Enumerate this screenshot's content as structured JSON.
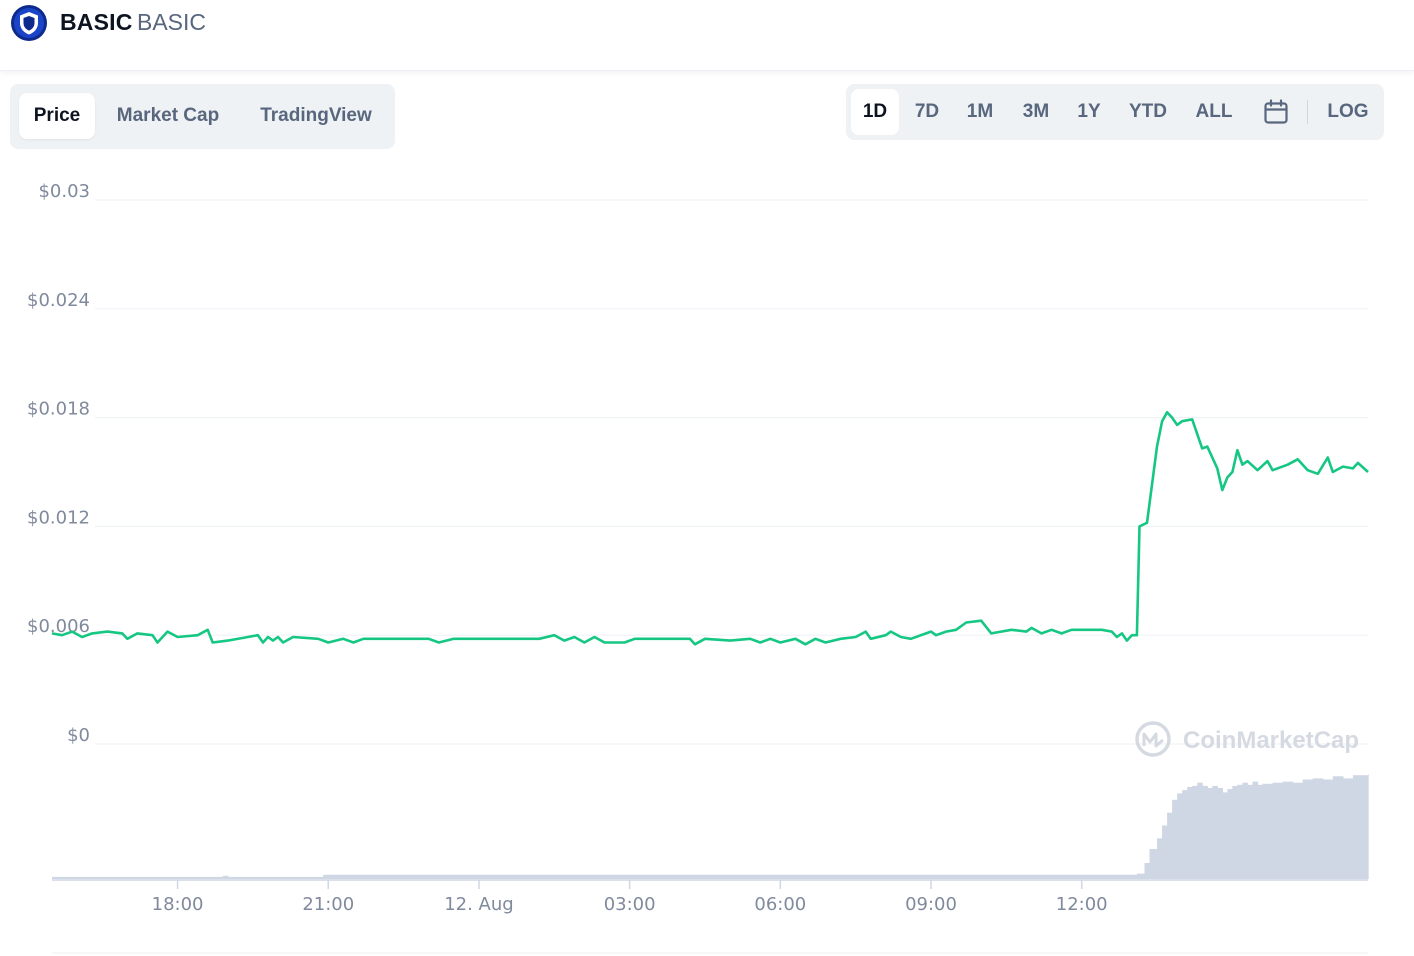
{
  "header": {
    "name": "BASIC",
    "symbol": "BASIC"
  },
  "tabs": [
    {
      "label": "Price",
      "active": true
    },
    {
      "label": "Market Cap",
      "active": false
    },
    {
      "label": "TradingView",
      "active": false
    }
  ],
  "ranges": [
    {
      "label": "1D",
      "active": true
    },
    {
      "label": "7D",
      "active": false
    },
    {
      "label": "1M",
      "active": false
    },
    {
      "label": "3M",
      "active": false
    },
    {
      "label": "1Y",
      "active": false
    },
    {
      "label": "YTD",
      "active": false
    },
    {
      "label": "ALL",
      "active": false
    }
  ],
  "log_label": "LOG",
  "watermark": "CoinMarketCap",
  "colors": {
    "line": "#16c784",
    "volume": "#cfd6e4",
    "grid": "#eff2f5",
    "axis_text": "#808a9d",
    "brand": "#0d2a8c"
  },
  "chart_data": {
    "type": "line",
    "title": "",
    "xlabel": "",
    "ylabel": "",
    "ylim": [
      0,
      0.03
    ],
    "yticks": [
      {
        "value": 0.03,
        "label": "$0.03"
      },
      {
        "value": 0.024,
        "label": "$0.024"
      },
      {
        "value": 0.018,
        "label": "$0.018"
      },
      {
        "value": 0.012,
        "label": "$0.012"
      },
      {
        "value": 0.006,
        "label": "$0.006"
      },
      {
        "value": 0,
        "label": "$0"
      }
    ],
    "xlim": [
      15.5,
      14.4
    ],
    "xticks": [
      {
        "hour": 18,
        "label": "18:00"
      },
      {
        "hour": 21,
        "label": "21:00"
      },
      {
        "hour": 24,
        "label": "12. Aug"
      },
      {
        "hour": 27,
        "label": "03:00"
      },
      {
        "hour": 30,
        "label": "06:00"
      },
      {
        "hour": 33,
        "label": "09:00"
      },
      {
        "hour": 36,
        "label": "12:00"
      }
    ],
    "series": [
      {
        "values": [
          [
            15.5,
            0.0061
          ],
          [
            15.7,
            0.006
          ],
          [
            15.9,
            0.0062
          ],
          [
            16.1,
            0.0059
          ],
          [
            16.3,
            0.0061
          ],
          [
            16.6,
            0.0062
          ],
          [
            16.9,
            0.0061
          ],
          [
            17.0,
            0.0058
          ],
          [
            17.2,
            0.0061
          ],
          [
            17.5,
            0.006
          ],
          [
            17.6,
            0.0056
          ],
          [
            17.8,
            0.0062
          ],
          [
            18.0,
            0.0059
          ],
          [
            18.4,
            0.006
          ],
          [
            18.6,
            0.0063
          ],
          [
            18.7,
            0.0056
          ],
          [
            19.0,
            0.0057
          ],
          [
            19.4,
            0.0059
          ],
          [
            19.6,
            0.006
          ],
          [
            19.7,
            0.0056
          ],
          [
            19.8,
            0.0059
          ],
          [
            19.9,
            0.0057
          ],
          [
            20.0,
            0.0059
          ],
          [
            20.1,
            0.0056
          ],
          [
            20.3,
            0.0059
          ],
          [
            20.8,
            0.0058
          ],
          [
            21.0,
            0.0056
          ],
          [
            21.3,
            0.0058
          ],
          [
            21.5,
            0.0056
          ],
          [
            21.7,
            0.0058
          ],
          [
            22.5,
            0.0058
          ],
          [
            23.0,
            0.0058
          ],
          [
            23.2,
            0.0056
          ],
          [
            23.5,
            0.0058
          ],
          [
            24.0,
            0.0058
          ],
          [
            25.0,
            0.0058
          ],
          [
            25.2,
            0.0058
          ],
          [
            25.5,
            0.006
          ],
          [
            25.7,
            0.0057
          ],
          [
            25.9,
            0.0059
          ],
          [
            26.1,
            0.0056
          ],
          [
            26.3,
            0.0059
          ],
          [
            26.5,
            0.0056
          ],
          [
            26.9,
            0.0056
          ],
          [
            27.1,
            0.0058
          ],
          [
            28.0,
            0.0058
          ],
          [
            28.2,
            0.0058
          ],
          [
            28.3,
            0.0055
          ],
          [
            28.5,
            0.0058
          ],
          [
            29.0,
            0.0057
          ],
          [
            29.4,
            0.0058
          ],
          [
            29.6,
            0.0056
          ],
          [
            29.8,
            0.0058
          ],
          [
            30.0,
            0.0056
          ],
          [
            30.3,
            0.0058
          ],
          [
            30.5,
            0.0055
          ],
          [
            30.7,
            0.0058
          ],
          [
            30.9,
            0.0056
          ],
          [
            31.2,
            0.0058
          ],
          [
            31.5,
            0.0059
          ],
          [
            31.7,
            0.0062
          ],
          [
            31.8,
            0.0058
          ],
          [
            32.1,
            0.006
          ],
          [
            32.2,
            0.0062
          ],
          [
            32.4,
            0.0059
          ],
          [
            32.6,
            0.0058
          ],
          [
            32.9,
            0.0061
          ],
          [
            33.0,
            0.0062
          ],
          [
            33.1,
            0.006
          ],
          [
            33.3,
            0.0062
          ],
          [
            33.5,
            0.0063
          ],
          [
            33.7,
            0.0067
          ],
          [
            34.0,
            0.0068
          ],
          [
            34.2,
            0.0061
          ],
          [
            34.6,
            0.0063
          ],
          [
            34.9,
            0.0062
          ],
          [
            35.0,
            0.0064
          ],
          [
            35.2,
            0.0061
          ],
          [
            35.4,
            0.0063
          ],
          [
            35.6,
            0.0061
          ],
          [
            35.8,
            0.0063
          ],
          [
            36.0,
            0.0063
          ],
          [
            36.4,
            0.0063
          ],
          [
            36.6,
            0.0062
          ],
          [
            36.7,
            0.0059
          ],
          [
            36.8,
            0.0061
          ],
          [
            36.9,
            0.0057
          ],
          [
            37.0,
            0.006
          ],
          [
            37.1,
            0.006
          ],
          [
            37.15,
            0.012
          ],
          [
            37.3,
            0.0122
          ],
          [
            37.5,
            0.0164
          ],
          [
            37.6,
            0.0178
          ],
          [
            37.7,
            0.0183
          ],
          [
            37.8,
            0.018
          ],
          [
            37.9,
            0.0176
          ],
          [
            38.0,
            0.0178
          ],
          [
            38.2,
            0.0179
          ],
          [
            38.4,
            0.0163
          ],
          [
            38.5,
            0.0164
          ],
          [
            38.6,
            0.0158
          ],
          [
            38.7,
            0.0152
          ],
          [
            38.8,
            0.014
          ],
          [
            38.9,
            0.0147
          ],
          [
            39.0,
            0.015
          ],
          [
            39.1,
            0.0162
          ],
          [
            39.2,
            0.0154
          ],
          [
            39.3,
            0.0156
          ],
          [
            39.5,
            0.0151
          ],
          [
            39.7,
            0.0156
          ],
          [
            39.8,
            0.0151
          ],
          [
            40.1,
            0.0154
          ],
          [
            40.3,
            0.0157
          ],
          [
            40.5,
            0.0151
          ],
          [
            40.7,
            0.0149
          ],
          [
            40.9,
            0.0158
          ],
          [
            41.0,
            0.015
          ],
          [
            41.2,
            0.0153
          ],
          [
            41.4,
            0.0152
          ],
          [
            41.5,
            0.0155
          ],
          [
            41.7,
            0.015
          ]
        ]
      }
    ],
    "volume": {
      "values": [
        [
          15.5,
          0.02
        ],
        [
          17.0,
          0.02
        ],
        [
          18.9,
          0.03
        ],
        [
          19.0,
          0.02
        ],
        [
          20.0,
          0.02
        ],
        [
          20.9,
          0.04
        ],
        [
          21.0,
          0.04
        ],
        [
          21.5,
          0.04
        ],
        [
          24.0,
          0.04
        ],
        [
          27.0,
          0.04
        ],
        [
          30.0,
          0.04
        ],
        [
          33.0,
          0.04
        ],
        [
          36.0,
          0.04
        ],
        [
          37.0,
          0.04
        ],
        [
          37.1,
          0.05
        ],
        [
          37.25,
          0.15
        ],
        [
          37.35,
          0.28
        ],
        [
          37.5,
          0.38
        ],
        [
          37.6,
          0.5
        ],
        [
          37.7,
          0.62
        ],
        [
          37.8,
          0.74
        ],
        [
          37.9,
          0.8
        ],
        [
          38.0,
          0.83
        ],
        [
          38.1,
          0.86
        ],
        [
          38.2,
          0.87
        ],
        [
          38.3,
          0.9
        ],
        [
          38.4,
          0.87
        ],
        [
          38.5,
          0.85
        ],
        [
          38.6,
          0.87
        ],
        [
          38.7,
          0.85
        ],
        [
          38.8,
          0.81
        ],
        [
          38.9,
          0.84
        ],
        [
          39.0,
          0.87
        ],
        [
          39.1,
          0.88
        ],
        [
          39.2,
          0.9
        ],
        [
          39.3,
          0.88
        ],
        [
          39.4,
          0.91
        ],
        [
          39.5,
          0.88
        ],
        [
          39.6,
          0.89
        ],
        [
          39.8,
          0.9
        ],
        [
          40.0,
          0.91
        ],
        [
          40.2,
          0.9
        ],
        [
          40.4,
          0.93
        ],
        [
          40.6,
          0.94
        ],
        [
          40.8,
          0.93
        ],
        [
          41.0,
          0.96
        ],
        [
          41.2,
          0.94
        ],
        [
          41.4,
          0.97
        ],
        [
          41.7,
          0.98
        ]
      ]
    }
  }
}
